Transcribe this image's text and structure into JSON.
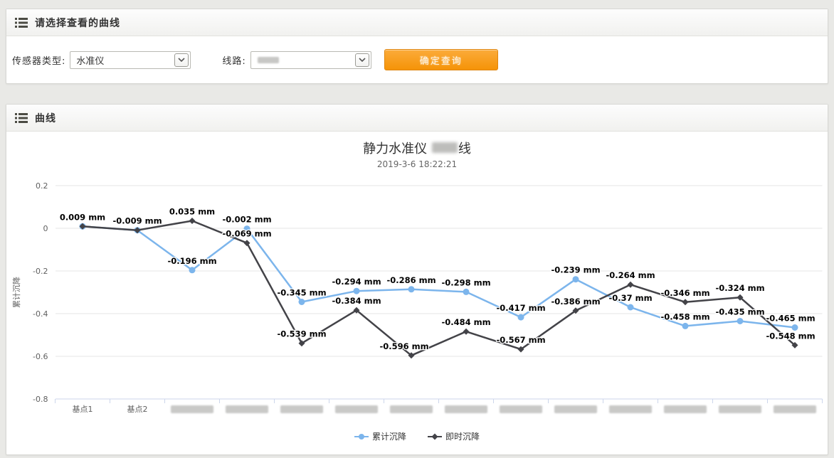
{
  "filter_panel": {
    "title": "请选择查看的曲线",
    "sensor_type_label": "传感器类型:",
    "sensor_type_value": "水准仪",
    "line_label": "线路:",
    "line_value_redacted": true,
    "query_button_label": "确定查询"
  },
  "curve_panel": {
    "title": "曲线"
  },
  "chart_data": {
    "type": "line",
    "title_prefix": "静力水准仪 ",
    "title_redacted_segment": true,
    "title_suffix": "线",
    "subtitle": "2019-3-6 18:22:21",
    "ylabel": "累计沉降",
    "unit": "mm",
    "ylim": [
      -0.8,
      0.2
    ],
    "yticks": [
      0.2,
      0,
      -0.2,
      -0.4,
      -0.6,
      -0.8
    ],
    "grid": true,
    "legend_position": "bottom",
    "categories": [
      "基点1",
      "基点2",
      null,
      null,
      null,
      null,
      null,
      null,
      null,
      null,
      null,
      null,
      null,
      null
    ],
    "series": [
      {
        "name": "累计沉降",
        "color": "#7cb5ec",
        "marker": "circle",
        "values": [
          0.009,
          -0.009,
          -0.196,
          -0.002,
          -0.345,
          -0.294,
          -0.286,
          -0.298,
          -0.417,
          -0.239,
          -0.37,
          -0.458,
          -0.435,
          -0.465
        ],
        "label_dx": {
          "13": -6
        }
      },
      {
        "name": "即时沉降",
        "color": "#434348",
        "marker": "diamond",
        "values": [
          0.009,
          -0.009,
          0.035,
          -0.069,
          -0.539,
          -0.384,
          -0.596,
          -0.484,
          -0.567,
          -0.386,
          -0.264,
          -0.346,
          -0.324,
          -0.548
        ],
        "label_hidden": [
          0,
          1
        ],
        "label_dx": {
          "6": -10,
          "13": -6
        }
      }
    ]
  }
}
